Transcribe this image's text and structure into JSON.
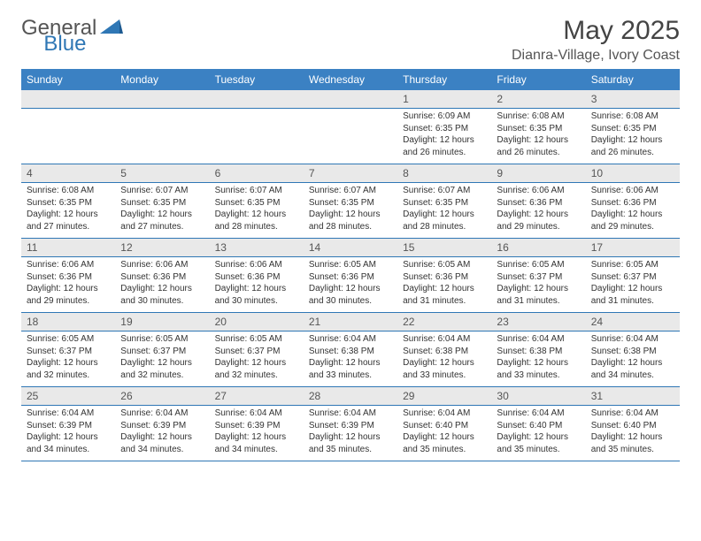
{
  "logo": {
    "text1": "General",
    "text2": "Blue"
  },
  "title": "May 2025",
  "location": "Dianra-Village, Ivory Coast",
  "colors": {
    "header_bg": "#3b81c3",
    "header_text": "#ffffff",
    "daynum_bg": "#e9e9e9",
    "border": "#2f77b5",
    "logo_blue": "#2f77b5",
    "text": "#333333"
  },
  "weekdays": [
    "Sunday",
    "Monday",
    "Tuesday",
    "Wednesday",
    "Thursday",
    "Friday",
    "Saturday"
  ],
  "weeks": [
    [
      {
        "day": "",
        "sunrise": "",
        "sunset": "",
        "daylight": ""
      },
      {
        "day": "",
        "sunrise": "",
        "sunset": "",
        "daylight": ""
      },
      {
        "day": "",
        "sunrise": "",
        "sunset": "",
        "daylight": ""
      },
      {
        "day": "",
        "sunrise": "",
        "sunset": "",
        "daylight": ""
      },
      {
        "day": "1",
        "sunrise": "Sunrise: 6:09 AM",
        "sunset": "Sunset: 6:35 PM",
        "daylight": "Daylight: 12 hours and 26 minutes."
      },
      {
        "day": "2",
        "sunrise": "Sunrise: 6:08 AM",
        "sunset": "Sunset: 6:35 PM",
        "daylight": "Daylight: 12 hours and 26 minutes."
      },
      {
        "day": "3",
        "sunrise": "Sunrise: 6:08 AM",
        "sunset": "Sunset: 6:35 PM",
        "daylight": "Daylight: 12 hours and 26 minutes."
      }
    ],
    [
      {
        "day": "4",
        "sunrise": "Sunrise: 6:08 AM",
        "sunset": "Sunset: 6:35 PM",
        "daylight": "Daylight: 12 hours and 27 minutes."
      },
      {
        "day": "5",
        "sunrise": "Sunrise: 6:07 AM",
        "sunset": "Sunset: 6:35 PM",
        "daylight": "Daylight: 12 hours and 27 minutes."
      },
      {
        "day": "6",
        "sunrise": "Sunrise: 6:07 AM",
        "sunset": "Sunset: 6:35 PM",
        "daylight": "Daylight: 12 hours and 28 minutes."
      },
      {
        "day": "7",
        "sunrise": "Sunrise: 6:07 AM",
        "sunset": "Sunset: 6:35 PM",
        "daylight": "Daylight: 12 hours and 28 minutes."
      },
      {
        "day": "8",
        "sunrise": "Sunrise: 6:07 AM",
        "sunset": "Sunset: 6:35 PM",
        "daylight": "Daylight: 12 hours and 28 minutes."
      },
      {
        "day": "9",
        "sunrise": "Sunrise: 6:06 AM",
        "sunset": "Sunset: 6:36 PM",
        "daylight": "Daylight: 12 hours and 29 minutes."
      },
      {
        "day": "10",
        "sunrise": "Sunrise: 6:06 AM",
        "sunset": "Sunset: 6:36 PM",
        "daylight": "Daylight: 12 hours and 29 minutes."
      }
    ],
    [
      {
        "day": "11",
        "sunrise": "Sunrise: 6:06 AM",
        "sunset": "Sunset: 6:36 PM",
        "daylight": "Daylight: 12 hours and 29 minutes."
      },
      {
        "day": "12",
        "sunrise": "Sunrise: 6:06 AM",
        "sunset": "Sunset: 6:36 PM",
        "daylight": "Daylight: 12 hours and 30 minutes."
      },
      {
        "day": "13",
        "sunrise": "Sunrise: 6:06 AM",
        "sunset": "Sunset: 6:36 PM",
        "daylight": "Daylight: 12 hours and 30 minutes."
      },
      {
        "day": "14",
        "sunrise": "Sunrise: 6:05 AM",
        "sunset": "Sunset: 6:36 PM",
        "daylight": "Daylight: 12 hours and 30 minutes."
      },
      {
        "day": "15",
        "sunrise": "Sunrise: 6:05 AM",
        "sunset": "Sunset: 6:36 PM",
        "daylight": "Daylight: 12 hours and 31 minutes."
      },
      {
        "day": "16",
        "sunrise": "Sunrise: 6:05 AM",
        "sunset": "Sunset: 6:37 PM",
        "daylight": "Daylight: 12 hours and 31 minutes."
      },
      {
        "day": "17",
        "sunrise": "Sunrise: 6:05 AM",
        "sunset": "Sunset: 6:37 PM",
        "daylight": "Daylight: 12 hours and 31 minutes."
      }
    ],
    [
      {
        "day": "18",
        "sunrise": "Sunrise: 6:05 AM",
        "sunset": "Sunset: 6:37 PM",
        "daylight": "Daylight: 12 hours and 32 minutes."
      },
      {
        "day": "19",
        "sunrise": "Sunrise: 6:05 AM",
        "sunset": "Sunset: 6:37 PM",
        "daylight": "Daylight: 12 hours and 32 minutes."
      },
      {
        "day": "20",
        "sunrise": "Sunrise: 6:05 AM",
        "sunset": "Sunset: 6:37 PM",
        "daylight": "Daylight: 12 hours and 32 minutes."
      },
      {
        "day": "21",
        "sunrise": "Sunrise: 6:04 AM",
        "sunset": "Sunset: 6:38 PM",
        "daylight": "Daylight: 12 hours and 33 minutes."
      },
      {
        "day": "22",
        "sunrise": "Sunrise: 6:04 AM",
        "sunset": "Sunset: 6:38 PM",
        "daylight": "Daylight: 12 hours and 33 minutes."
      },
      {
        "day": "23",
        "sunrise": "Sunrise: 6:04 AM",
        "sunset": "Sunset: 6:38 PM",
        "daylight": "Daylight: 12 hours and 33 minutes."
      },
      {
        "day": "24",
        "sunrise": "Sunrise: 6:04 AM",
        "sunset": "Sunset: 6:38 PM",
        "daylight": "Daylight: 12 hours and 34 minutes."
      }
    ],
    [
      {
        "day": "25",
        "sunrise": "Sunrise: 6:04 AM",
        "sunset": "Sunset: 6:39 PM",
        "daylight": "Daylight: 12 hours and 34 minutes."
      },
      {
        "day": "26",
        "sunrise": "Sunrise: 6:04 AM",
        "sunset": "Sunset: 6:39 PM",
        "daylight": "Daylight: 12 hours and 34 minutes."
      },
      {
        "day": "27",
        "sunrise": "Sunrise: 6:04 AM",
        "sunset": "Sunset: 6:39 PM",
        "daylight": "Daylight: 12 hours and 34 minutes."
      },
      {
        "day": "28",
        "sunrise": "Sunrise: 6:04 AM",
        "sunset": "Sunset: 6:39 PM",
        "daylight": "Daylight: 12 hours and 35 minutes."
      },
      {
        "day": "29",
        "sunrise": "Sunrise: 6:04 AM",
        "sunset": "Sunset: 6:40 PM",
        "daylight": "Daylight: 12 hours and 35 minutes."
      },
      {
        "day": "30",
        "sunrise": "Sunrise: 6:04 AM",
        "sunset": "Sunset: 6:40 PM",
        "daylight": "Daylight: 12 hours and 35 minutes."
      },
      {
        "day": "31",
        "sunrise": "Sunrise: 6:04 AM",
        "sunset": "Sunset: 6:40 PM",
        "daylight": "Daylight: 12 hours and 35 minutes."
      }
    ]
  ]
}
